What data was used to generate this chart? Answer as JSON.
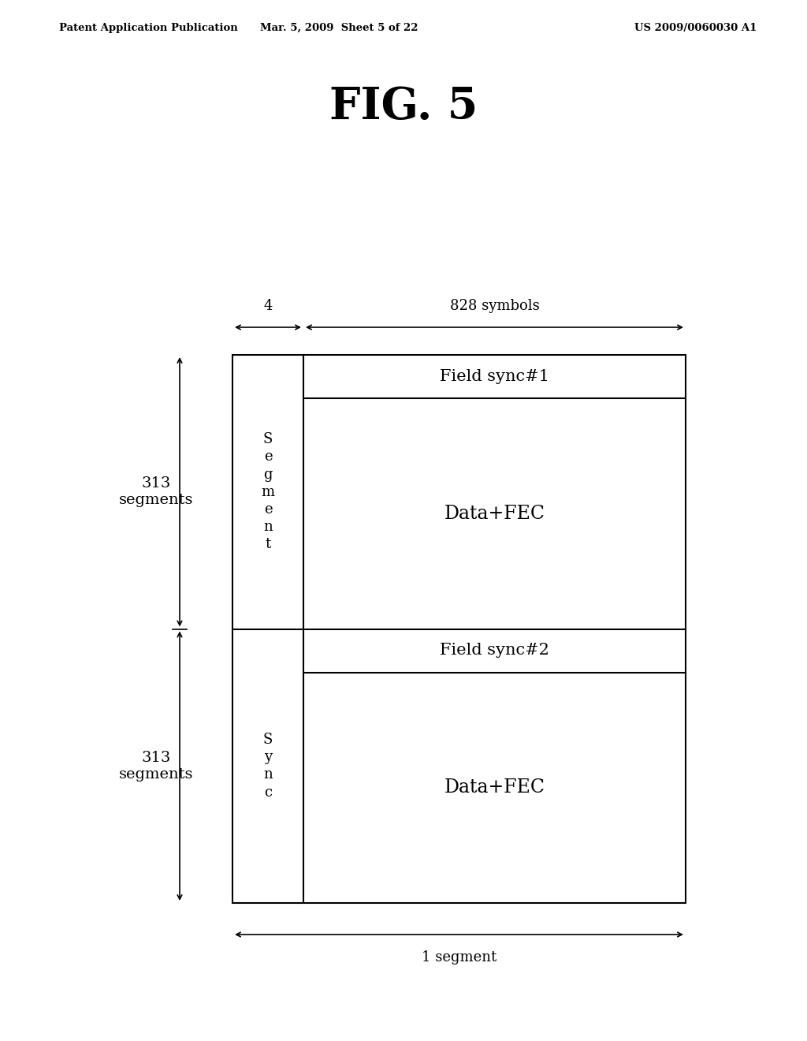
{
  "title": "FIG. 5",
  "header_left": "Patent Application Publication",
  "header_mid": "Mar. 5, 2009  Sheet 5 of 22",
  "header_right": "US 2009/0060030 A1",
  "bg_color": "#ffffff",
  "text_color": "#000000",
  "diagram": {
    "top_arrow_label_4": "4",
    "top_arrow_label_828": "828 symbols",
    "bottom_arrow_label": "1 segment",
    "left_upper_label": "313\nsegments",
    "left_lower_label": "313\nsegments",
    "sync_col_upper_text": "S\ne\ng\nm\ne\nn\nt",
    "sync_col_lower_text": "S\ny\nn\nc",
    "row1_label": "Field sync#1",
    "row2_label": "Data+FEC",
    "row3_label": "Field sync#2",
    "row4_label": "Data+FEC"
  }
}
